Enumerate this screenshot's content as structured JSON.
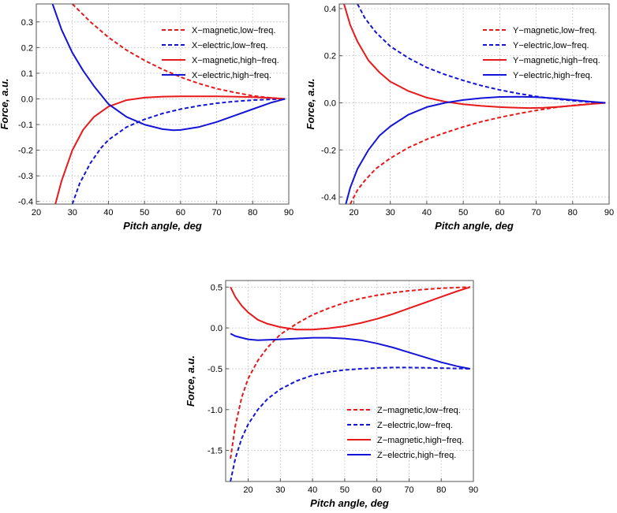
{
  "chart_data": [
    {
      "type": "line",
      "title": "",
      "xlabel": "Pitch angle, deg",
      "ylabel": "Force, a.u.",
      "xlim": [
        20,
        90
      ],
      "ylim": [
        -0.41,
        0.37
      ],
      "xticks": [
        20,
        30,
        40,
        50,
        60,
        70,
        80,
        90
      ],
      "yticks": [
        -0.4,
        -0.3,
        -0.2,
        -0.1,
        0.0,
        0.1,
        0.2,
        0.3
      ],
      "ytick_labels": [
        "-0.4",
        "-0.3",
        "-0.2",
        "-0.1",
        "0.0",
        "0.1",
        "0.2",
        "0.3"
      ],
      "grid": true,
      "legend_position": "top-right",
      "series": [
        {
          "name": "X−magnetic,low−freq.",
          "color": "#e8191b",
          "dash": true,
          "x": [
            30,
            35,
            40,
            45,
            50,
            55,
            60,
            65,
            70,
            75,
            80,
            85,
            89
          ],
          "y": [
            0.37,
            0.3,
            0.24,
            0.19,
            0.15,
            0.115,
            0.085,
            0.06,
            0.04,
            0.025,
            0.012,
            0.004,
            0.0
          ]
        },
        {
          "name": "X−electric,low−freq.",
          "color": "#1414d8",
          "dash": true,
          "x": [
            30,
            32,
            35,
            38,
            40,
            45,
            50,
            55,
            60,
            65,
            70,
            75,
            80,
            85,
            89
          ],
          "y": [
            -0.41,
            -0.33,
            -0.25,
            -0.19,
            -0.16,
            -0.11,
            -0.08,
            -0.057,
            -0.04,
            -0.027,
            -0.017,
            -0.01,
            -0.005,
            -0.002,
            0.0
          ]
        },
        {
          "name": "X−magnetic,high−freq.",
          "color": "#e8191b",
          "dash": false,
          "x": [
            25.3,
            27,
            30,
            33,
            36,
            40,
            45,
            50,
            55,
            60,
            65,
            70,
            75,
            80,
            85,
            89
          ],
          "y": [
            -0.41,
            -0.32,
            -0.2,
            -0.12,
            -0.07,
            -0.03,
            -0.005,
            0.005,
            0.009,
            0.01,
            0.01,
            0.01,
            0.009,
            0.007,
            0.004,
            0.0
          ]
        },
        {
          "name": "X−electric,high−freq.",
          "color": "#1414d8",
          "dash": false,
          "x": [
            24.5,
            27,
            30,
            33,
            36,
            40,
            45,
            50,
            55,
            58,
            60,
            65,
            70,
            75,
            80,
            85,
            89
          ],
          "y": [
            0.37,
            0.27,
            0.18,
            0.11,
            0.05,
            -0.02,
            -0.07,
            -0.1,
            -0.118,
            -0.122,
            -0.121,
            -0.11,
            -0.09,
            -0.065,
            -0.04,
            -0.015,
            0.0
          ]
        }
      ]
    },
    {
      "type": "line",
      "title": "",
      "xlabel": "Pitch angle, deg",
      "ylabel": "Force, a.u.",
      "xlim": [
        16,
        90
      ],
      "ylim": [
        -0.43,
        0.42
      ],
      "xticks": [
        20,
        30,
        40,
        50,
        60,
        70,
        80,
        90
      ],
      "yticks": [
        -0.4,
        -0.2,
        0.0,
        0.2,
        0.4
      ],
      "ytick_labels": [
        "-0.4",
        "-0.2",
        "0.0",
        "0.2",
        "0.4"
      ],
      "grid": true,
      "legend_position": "top-right",
      "series": [
        {
          "name": "Y−magnetic,low−freq.",
          "color": "#e8191b",
          "dash": true,
          "x": [
            19,
            21,
            23,
            26,
            30,
            35,
            40,
            45,
            50,
            55,
            60,
            65,
            70,
            75,
            80,
            85,
            89
          ],
          "y": [
            -0.43,
            -0.37,
            -0.33,
            -0.28,
            -0.235,
            -0.19,
            -0.155,
            -0.127,
            -0.102,
            -0.08,
            -0.062,
            -0.046,
            -0.032,
            -0.02,
            -0.011,
            -0.004,
            0.0
          ]
        },
        {
          "name": "Y−electric,low−freq.",
          "color": "#1414d8",
          "dash": true,
          "x": [
            21,
            23,
            26,
            30,
            35,
            40,
            45,
            50,
            55,
            60,
            65,
            70,
            75,
            80,
            85,
            89
          ],
          "y": [
            0.42,
            0.36,
            0.3,
            0.24,
            0.19,
            0.15,
            0.12,
            0.095,
            0.073,
            0.055,
            0.04,
            0.027,
            0.017,
            0.009,
            0.003,
            0.0
          ]
        },
        {
          "name": "Y−magnetic,high−freq.",
          "color": "#e8191b",
          "dash": false,
          "x": [
            17.3,
            19,
            21,
            24,
            27,
            30,
            35,
            40,
            45,
            50,
            55,
            60,
            65,
            68,
            72,
            76,
            80,
            85,
            89
          ],
          "y": [
            0.42,
            0.33,
            0.26,
            0.18,
            0.13,
            0.09,
            0.05,
            0.022,
            0.005,
            -0.006,
            -0.013,
            -0.018,
            -0.021,
            -0.022,
            -0.021,
            -0.017,
            -0.012,
            -0.005,
            0.0
          ]
        },
        {
          "name": "Y−electric,high−freq.",
          "color": "#1414d8",
          "dash": false,
          "x": [
            17.8,
            19,
            21,
            24,
            27,
            30,
            35,
            40,
            45,
            50,
            55,
            60,
            65,
            70,
            75,
            80,
            85,
            89
          ],
          "y": [
            -0.43,
            -0.36,
            -0.28,
            -0.2,
            -0.14,
            -0.1,
            -0.05,
            -0.018,
            0.0,
            0.012,
            0.02,
            0.025,
            0.026,
            0.024,
            0.019,
            0.012,
            0.005,
            0.0
          ]
        }
      ]
    },
    {
      "type": "line",
      "title": "",
      "xlabel": "Pitch angle, deg",
      "ylabel": "Force, a.u.",
      "xlim": [
        13,
        90
      ],
      "ylim": [
        -1.88,
        0.58
      ],
      "xticks": [
        20,
        30,
        40,
        50,
        60,
        70,
        80,
        90
      ],
      "yticks": [
        -1.5,
        -1.0,
        -0.5,
        0.0,
        0.5
      ],
      "ytick_labels": [
        "-1.5",
        "-1.0",
        "-0.5",
        "0.0",
        "0.5"
      ],
      "grid": true,
      "legend_position": "bottom-right",
      "series": [
        {
          "name": "Z−magnetic,low−freq.",
          "color": "#e8191b",
          "dash": true,
          "x": [
            14.5,
            16,
            18,
            20,
            23,
            26,
            30,
            35,
            40,
            45,
            50,
            55,
            60,
            65,
            70,
            75,
            80,
            85,
            89
          ],
          "y": [
            -1.6,
            -1.2,
            -0.85,
            -0.62,
            -0.4,
            -0.24,
            -0.08,
            0.05,
            0.16,
            0.24,
            0.31,
            0.36,
            0.4,
            0.43,
            0.455,
            0.472,
            0.485,
            0.494,
            0.5
          ]
        },
        {
          "name": "Z−electric,low−freq.",
          "color": "#1414d8",
          "dash": true,
          "x": [
            14.5,
            16,
            18,
            20,
            23,
            26,
            30,
            35,
            40,
            45,
            50,
            55,
            60,
            65,
            70,
            75,
            80,
            85,
            89
          ],
          "y": [
            -1.88,
            -1.6,
            -1.35,
            -1.18,
            -1.0,
            -0.87,
            -0.75,
            -0.65,
            -0.58,
            -0.54,
            -0.515,
            -0.5,
            -0.49,
            -0.485,
            -0.485,
            -0.488,
            -0.492,
            -0.497,
            -0.5
          ]
        },
        {
          "name": "Z−magnetic,high−freq.",
          "color": "#e8191b",
          "dash": false,
          "x": [
            14.5,
            16,
            18,
            20,
            23,
            26,
            30,
            35,
            40,
            45,
            50,
            55,
            60,
            65,
            70,
            75,
            80,
            85,
            89
          ],
          "y": [
            0.5,
            0.38,
            0.27,
            0.19,
            0.1,
            0.05,
            0.01,
            -0.02,
            -0.02,
            -0.005,
            0.02,
            0.06,
            0.11,
            0.17,
            0.24,
            0.31,
            0.38,
            0.45,
            0.5
          ]
        },
        {
          "name": "Z−electric,high−freq.",
          "color": "#1414d8",
          "dash": false,
          "x": [
            14.5,
            16,
            18,
            20,
            23,
            26,
            30,
            35,
            40,
            45,
            50,
            55,
            60,
            65,
            70,
            75,
            80,
            85,
            89
          ],
          "y": [
            -0.07,
            -0.1,
            -0.12,
            -0.14,
            -0.15,
            -0.145,
            -0.14,
            -0.13,
            -0.12,
            -0.12,
            -0.13,
            -0.15,
            -0.19,
            -0.24,
            -0.3,
            -0.36,
            -0.42,
            -0.47,
            -0.5
          ]
        }
      ]
    }
  ]
}
